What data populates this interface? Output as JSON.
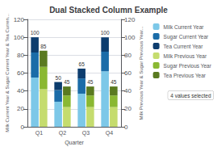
{
  "chart_data": {
    "type": "bar",
    "stacked": true,
    "title": "Dual Stacked Column Example",
    "xlabel": "Quarter",
    "ylabel": "Milk Current Year & Sugar Current Year & Tea Curren...",
    "y2label": "Milk Previous Year & Sugar Previous Year...",
    "categories": [
      "Q1",
      "Q2",
      "Q3",
      "Q4"
    ],
    "series": [
      {
        "name": "Milk Current Year",
        "color": "#7dc8e8",
        "values": [
          55,
          28,
          37,
          62
        ],
        "axis": "y"
      },
      {
        "name": "Sugar Current Year",
        "color": "#1b6ca8",
        "values": [
          28,
          13,
          17,
          22
        ],
        "axis": "y"
      },
      {
        "name": "Tea Current Year",
        "color": "#0d3d6e",
        "values": [
          17,
          9,
          11,
          16
        ],
        "axis": "y",
        "totals": [
          100,
          50,
          65,
          100
        ]
      },
      {
        "name": "Milk Previous Year",
        "color": "#c5dc6e",
        "values": [
          42,
          22,
          22,
          22
        ],
        "axis": "y2"
      },
      {
        "name": "Sugar Previous Year",
        "color": "#8ab832",
        "values": [
          25,
          13,
          13,
          13
        ],
        "axis": "y2"
      },
      {
        "name": "Tea Previous Year",
        "color": "#5a7a20",
        "values": [
          18,
          10,
          10,
          10
        ],
        "axis": "y2",
        "totals": [
          85,
          45,
          45,
          45
        ]
      }
    ],
    "ylim": [
      0,
      120
    ],
    "yticks": [
      0,
      20,
      40,
      60,
      80,
      100,
      120
    ],
    "y2lim": [
      0,
      120
    ],
    "y2ticks": [
      0,
      20,
      40,
      60,
      80,
      100,
      120
    ],
    "grid": true,
    "legend": "upper right",
    "annotation": "4 values selected"
  }
}
